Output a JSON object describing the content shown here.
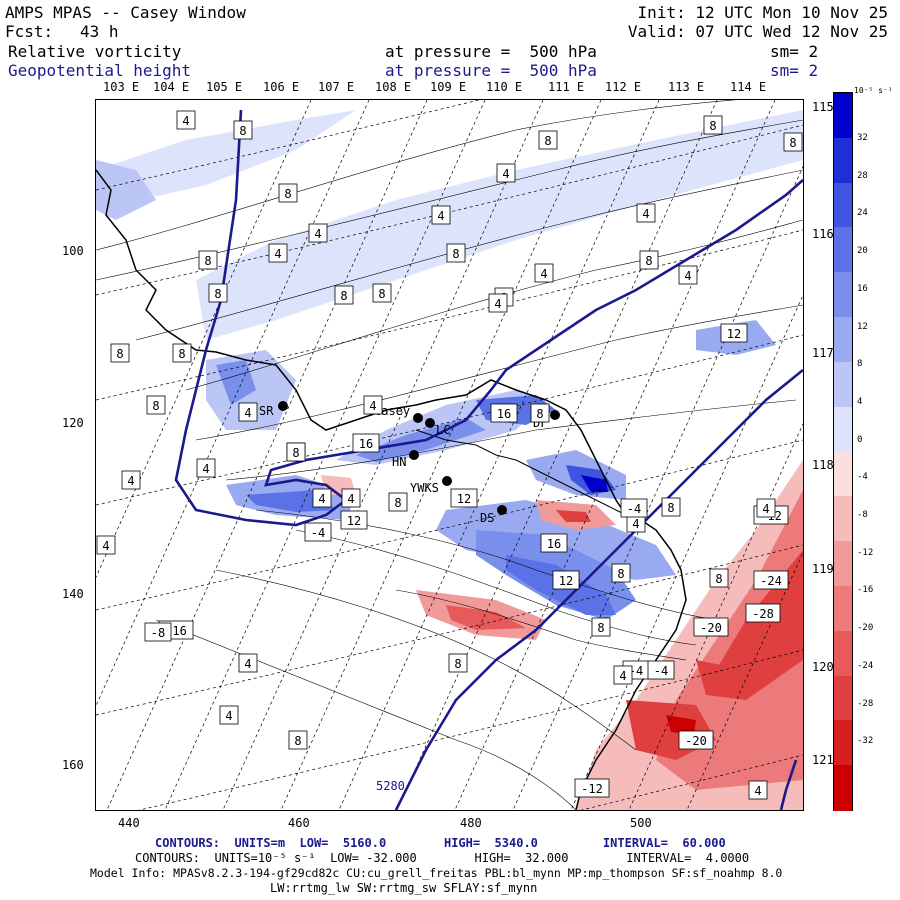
{
  "header": {
    "title": "AMPS MPAS -- Casey Window",
    "fcst_label": "Fcst:",
    "fcst_value": "43 h",
    "init": "Init: 12 UTC Mon 10 Nov 25",
    "valid": "Valid: 07 UTC Wed 12 Nov 25",
    "field1_name": "Relative vorticity",
    "field1_level": "at pressure =  500 hPa",
    "field1_smooth": "sm= 2",
    "field2_name": "Geopotential height",
    "field2_level": "at pressure =  500 hPa",
    "field2_smooth": "sm= 2"
  },
  "lon_labels": [
    "103 E",
    "104 E",
    "105 E",
    "106 E",
    "107 E",
    "108 E",
    "109 E",
    "110 E",
    "111 E",
    "112 E",
    "113 E",
    "114 E"
  ],
  "lon_right_labels": [
    "115 E",
    "116 E",
    "117 E",
    "118 E",
    "119 E",
    "120 E",
    "121 E"
  ],
  "x_ticks": [
    "440",
    "460",
    "480",
    "500"
  ],
  "y_ticks": [
    "100",
    "120",
    "140",
    "160"
  ],
  "colorbar": {
    "units": "10⁻⁵ s⁻¹",
    "labels": [
      "32",
      "28",
      "24",
      "20",
      "16",
      "12",
      "8",
      "4",
      "0",
      "-4",
      "-8",
      "-12",
      "-16",
      "-20",
      "-24",
      "-28",
      "-32"
    ],
    "colors": [
      "#0000cc",
      "#1f2fd8",
      "#3f55e0",
      "#5a72e6",
      "#7a8fec",
      "#9aaaf1",
      "#bcc6f6",
      "#dde3fb",
      "#ffffff",
      "#fbdede",
      "#f6bcbc",
      "#f19a9a",
      "#ec7a7a",
      "#e65a5a",
      "#e03f3f",
      "#d81f1f",
      "#cc0000"
    ]
  },
  "stations": [
    {
      "name": "SR"
    },
    {
      "name": "Casey"
    },
    {
      "name": "LC"
    },
    {
      "name": "HN"
    },
    {
      "name": "DF"
    },
    {
      "name": "YWKS"
    },
    {
      "name": "DS"
    }
  ],
  "contour_height_label": "5280",
  "contour_labels": [
    "4",
    "8",
    "8",
    "4",
    "8",
    "4",
    "8",
    "8",
    "8",
    "4",
    "8",
    "4",
    "4",
    "8",
    "8",
    "8",
    "8",
    "4",
    "4",
    "12",
    "8",
    "8",
    "8",
    "4",
    "4",
    "4",
    "4",
    "16",
    "16",
    "8",
    "4",
    "4",
    "8",
    "4",
    "12",
    "8",
    "-4",
    "4",
    "12",
    "4",
    "8",
    "16",
    "12",
    "8",
    "-12",
    "-4",
    "8",
    "8",
    "-20",
    "-24",
    "-28",
    "-4",
    "-20",
    "-4",
    "4",
    "8",
    "8",
    "4",
    "4",
    "-16",
    "-8",
    "-12",
    "4",
    "4",
    "4",
    "8"
  ],
  "footer": {
    "line1": "CONTOURS:  UNITS=m  LOW=  5160.0        HIGH=  5340.0         INTERVAL=  60.000",
    "line2": "CONTOURS:  UNITS=10⁻⁵ s⁻¹  LOW= -32.000        HIGH=  32.000        INTERVAL=  4.0000",
    "line3": "Model Info: MPASv8.2.3-194-gf29cd82c CU:cu_grell_freitas PBL:bl_mynn MP:mp_thompson SF:sf_noahmp 8.0",
    "line4": "LW:rrtmg_lw SW:rrtmg_sw SFLAY:sf_mynn"
  }
}
